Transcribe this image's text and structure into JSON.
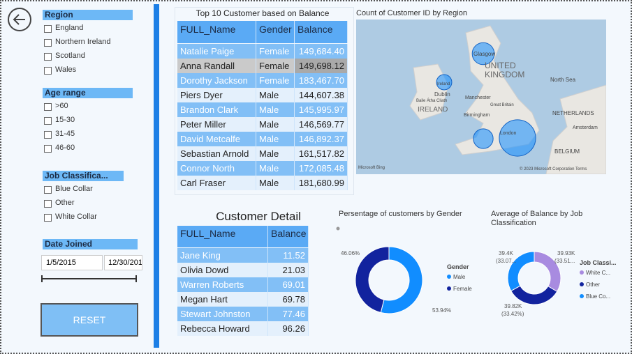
{
  "filters": {
    "region": {
      "title": "Region",
      "options": [
        "England",
        "Northern Ireland",
        "Scotland",
        "Wales"
      ]
    },
    "age_range": {
      "title": "Age range",
      "options": [
        ">60",
        "15-30",
        "31-45",
        "46-60"
      ]
    },
    "job": {
      "title": "Job Classifica...",
      "options": [
        "Blue Collar",
        "Other",
        "White Collar"
      ]
    },
    "date_joined": {
      "title": "Date Joined",
      "start": "1/5/2015",
      "end": "12/30/201"
    }
  },
  "reset": "RESET",
  "top10": {
    "title": "Top 10 Customer based on Balance",
    "columns": [
      "FULL_Name",
      "Gender",
      "Balance"
    ],
    "rows": [
      [
        "Natalie Paige",
        "Female",
        "149,684.40"
      ],
      [
        "Anna Randall",
        "Female",
        "149,698.12"
      ],
      [
        "Dorothy Jackson",
        "Female",
        "183,467.70"
      ],
      [
        "Piers Dyer",
        "Male",
        "144,607.38"
      ],
      [
        "Brandon Clark",
        "Male",
        "145,995.97"
      ],
      [
        "Peter Miller",
        "Male",
        "146,569.77"
      ],
      [
        "David Metcalfe",
        "Male",
        "146,892.37"
      ],
      [
        "Sebastian Arnold",
        "Male",
        "161,517.82"
      ],
      [
        "Connor North",
        "Male",
        "172,085.48"
      ],
      [
        "Carl Fraser",
        "Male",
        "181,680.99"
      ]
    ]
  },
  "customer_detail": {
    "title": "Customer Detail",
    "columns": [
      "FULL_Name",
      "Balance"
    ],
    "rows": [
      [
        "Jane King",
        "11.52"
      ],
      [
        "Olivia Dowd",
        "21.03"
      ],
      [
        "Warren Roberts",
        "69.01"
      ],
      [
        "Megan Hart",
        "69.78"
      ],
      [
        "Stewart Johnston",
        "77.46"
      ],
      [
        "Rebecca Howard",
        "96.26"
      ]
    ]
  },
  "chart_data": [
    {
      "type": "map",
      "title": "Count of Customer ID by Region",
      "values": [
        250,
        120,
        200,
        680
      ],
      "color": "#118dff",
      "map_labels": [
        "Glasgow",
        "UNITED",
        "KINGDOM",
        "North Sea",
        "Ireland",
        "Dublin",
        "Baile Átha Cliath",
        "IRELAND",
        "Manchester",
        "Great Britain",
        "Birmingham",
        "London",
        "NETHERLANDS",
        "Amsterdam",
        "BELGIUM",
        "Microsoft Bing",
        "© 2023 Microsoft Corporation Terms"
      ]
    },
    {
      "type": "donut",
      "title": "Persentage of customers by Gender",
      "legend_title": "Gender",
      "categories": [
        "Male",
        "Female"
      ],
      "values": [
        53.94,
        46.06
      ],
      "value_labels": [
        "53.94%",
        "46.06%"
      ],
      "colors": [
        "#118dff",
        "#12239e"
      ]
    },
    {
      "type": "donut",
      "title": "Average of Balance by Job Classification",
      "legend_title": "Job Classi...",
      "categories": [
        "White C...",
        "Other",
        "Blue Co..."
      ],
      "values": [
        39930,
        39820,
        39400
      ],
      "value_labels": [
        "39.93K",
        "39.82K",
        "39.4K"
      ],
      "percent_labels": [
        "(33.51...",
        "(33.42%)",
        "(33.07..."
      ],
      "colors": [
        "#a88be0",
        "#12239e",
        "#118dff"
      ]
    }
  ]
}
